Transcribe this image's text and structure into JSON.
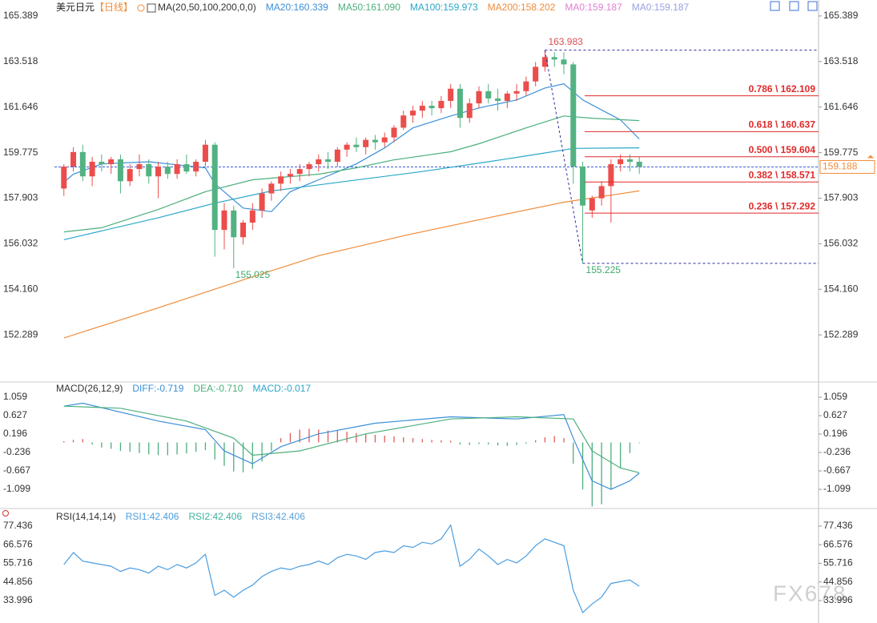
{
  "chart_data": [
    {
      "type": "candlestick",
      "title": "美元日元",
      "period": "【日线】",
      "indicator": "MA(20,50,100,200,0,0)",
      "up_color": "#eb4d4b",
      "down_color": "#52b282",
      "xlim": [
        -1,
        80
      ],
      "ylim": [
        150.42,
        165.88
      ],
      "yticks": [
        165.389,
        163.518,
        161.646,
        159.775,
        157.903,
        156.032,
        {
          "value": 154.16,
          "label": "154.160"
        },
        152.289
      ],
      "ohlc": [
        [
          158.3,
          159.3,
          158.0,
          159.2
        ],
        [
          159.2,
          160.0,
          159.0,
          159.8
        ],
        [
          159.8,
          160.1,
          158.6,
          158.8
        ],
        [
          158.8,
          159.6,
          158.4,
          159.4
        ],
        [
          159.4,
          159.7,
          159.0,
          159.3
        ],
        [
          159.3,
          159.6,
          158.9,
          159.5
        ],
        [
          159.5,
          159.7,
          158.1,
          158.6
        ],
        [
          158.6,
          159.3,
          158.4,
          159.1
        ],
        [
          159.1,
          159.7,
          158.8,
          159.3
        ],
        [
          159.3,
          159.5,
          158.5,
          158.8
        ],
        [
          158.8,
          159.4,
          157.9,
          159.2
        ],
        [
          159.2,
          159.4,
          158.7,
          158.9
        ],
        [
          158.9,
          159.5,
          158.7,
          159.3
        ],
        [
          159.3,
          159.7,
          158.9,
          159.0
        ],
        [
          159.0,
          159.5,
          158.8,
          159.4
        ],
        [
          159.4,
          160.3,
          159.2,
          160.1
        ],
        [
          160.1,
          160.2,
          155.5,
          156.6
        ],
        [
          156.6,
          157.7,
          155.8,
          157.4
        ],
        [
          157.4,
          157.6,
          155.025,
          156.3
        ],
        [
          156.3,
          157.0,
          156.0,
          156.9
        ],
        [
          156.9,
          157.7,
          156.6,
          157.4
        ],
        [
          157.4,
          158.3,
          157.1,
          158.1
        ],
        [
          158.1,
          158.6,
          157.8,
          158.5
        ],
        [
          158.5,
          159.0,
          158.2,
          158.8
        ],
        [
          158.8,
          159.1,
          158.5,
          158.9
        ],
        [
          158.9,
          159.3,
          158.6,
          159.1
        ],
        [
          159.1,
          159.4,
          158.8,
          159.3
        ],
        [
          159.3,
          159.7,
          159.0,
          159.5
        ],
        [
          159.5,
          159.8,
          159.1,
          159.4
        ],
        [
          159.4,
          160.0,
          159.2,
          159.9
        ],
        [
          159.9,
          160.2,
          159.6,
          160.1
        ],
        [
          160.1,
          160.4,
          159.8,
          160.0
        ],
        [
          160.0,
          160.4,
          159.7,
          160.3
        ],
        [
          160.3,
          160.5,
          159.9,
          160.2
        ],
        [
          160.2,
          160.6,
          160.0,
          160.4
        ],
        [
          160.4,
          160.9,
          160.2,
          160.8
        ],
        [
          160.8,
          161.5,
          160.7,
          161.3
        ],
        [
          161.3,
          161.7,
          161.0,
          161.5
        ],
        [
          161.5,
          161.9,
          161.2,
          161.7
        ],
        [
          161.7,
          161.9,
          161.3,
          161.6
        ],
        [
          161.6,
          162.1,
          161.4,
          161.9
        ],
        [
          161.9,
          162.6,
          161.6,
          162.4
        ],
        [
          162.4,
          162.6,
          160.8,
          161.2
        ],
        [
          161.2,
          162.0,
          161.0,
          161.8
        ],
        [
          161.8,
          162.5,
          161.6,
          162.3
        ],
        [
          162.3,
          162.6,
          161.8,
          162.0
        ],
        [
          162.0,
          162.4,
          161.5,
          161.9
        ],
        [
          161.9,
          162.3,
          161.6,
          162.2
        ],
        [
          162.2,
          162.6,
          161.9,
          162.3
        ],
        [
          162.3,
          162.9,
          162.1,
          162.7
        ],
        [
          162.7,
          163.5,
          162.5,
          163.3
        ],
        [
          163.3,
          163.983,
          163.1,
          163.7
        ],
        [
          163.7,
          163.9,
          163.3,
          163.6
        ],
        [
          163.6,
          163.9,
          163.0,
          163.4
        ],
        [
          163.4,
          163.5,
          158.5,
          159.2
        ],
        [
          159.2,
          159.4,
          155.225,
          157.6
        ],
        [
          157.4,
          158.0,
          157.1,
          157.9
        ],
        [
          157.9,
          158.6,
          157.6,
          158.4
        ],
        [
          158.4,
          159.5,
          156.9,
          159.3
        ],
        [
          159.3,
          159.7,
          159.0,
          159.5
        ],
        [
          159.5,
          159.7,
          159.0,
          159.4
        ],
        [
          159.4,
          159.6,
          158.9,
          159.188
        ]
      ],
      "series": [
        {
          "name": "MA20:160.339",
          "color": "#3b8fd8",
          "x": [
            0,
            1,
            4,
            9,
            15,
            16,
            19,
            22,
            24,
            27,
            31,
            34,
            37,
            41,
            44,
            48,
            51,
            53,
            55,
            59,
            61
          ],
          "values": [
            158.56,
            158.89,
            159.31,
            159.4,
            159.15,
            158.5,
            157.5,
            157.35,
            158.17,
            158.66,
            159.31,
            159.97,
            160.79,
            161.28,
            161.61,
            161.94,
            162.43,
            162.6,
            161.94,
            161.12,
            160.339
          ]
        },
        {
          "name": "MA50:161.090",
          "color": "#4caf7d",
          "x": [
            0,
            4,
            10,
            15,
            20,
            27,
            31,
            35,
            41,
            44,
            49,
            53,
            56,
            61
          ],
          "values": [
            156.52,
            156.69,
            157.44,
            158.17,
            158.66,
            158.89,
            159.15,
            159.48,
            159.81,
            160.14,
            160.79,
            161.28,
            161.19,
            161.09
          ]
        },
        {
          "name": "MA100:159.973",
          "color": "#2aa7c9",
          "x": [
            0,
            10,
            16,
            22,
            30,
            38,
            45,
            50,
            54,
            61
          ],
          "values": [
            156.2,
            157.1,
            157.7,
            158.2,
            158.6,
            159.0,
            159.4,
            159.7,
            159.95,
            159.973
          ]
        },
        {
          "name": "MA200:158.202",
          "color": "#f08c3a",
          "x": [
            0,
            10,
            19,
            27,
            36,
            44,
            53,
            61
          ],
          "values": [
            152.16,
            153.4,
            154.55,
            155.54,
            156.36,
            157.02,
            157.74,
            158.202
          ]
        }
      ],
      "extra_legend": [
        {
          "name": "MA0:159.187",
          "color": "#e07fd2"
        },
        {
          "name": "MA0:159.187",
          "color": "#9a9fe0"
        }
      ],
      "fib": [
        {
          "label": "0.786 \\ 162.109",
          "value": 162.109
        },
        {
          "label": "0.618 \\ 160.637",
          "value": 160.637
        },
        {
          "label": "0.500 \\ 159.604",
          "value": 159.604
        },
        {
          "label": "0.382 \\ 158.571",
          "value": 158.571
        },
        {
          "label": "0.236 \\ 157.292",
          "value": 157.292
        }
      ],
      "fib_color": "#e02a2a",
      "last_price": 159.188,
      "last_price_color": "#f08c3a",
      "last_line_color": "#3b5fd9",
      "trend_color": "#2a2aa0"
    },
    {
      "type": "macd",
      "title": "MACD(26,12,9)",
      "xlim": [
        -1,
        80
      ],
      "ylim": [
        -1.52,
        1.36
      ],
      "yticks": [
        1.059,
        0.627,
        0.196,
        -0.236,
        -0.667,
        -1.099
      ],
      "histogram": {
        "name": "MACD:-0.017",
        "color": "#2aa7c9",
        "up_color": "#e05a5a",
        "down_color": "#4caf7d",
        "values": [
          0.03,
          0.06,
          0.08,
          -0.05,
          -0.12,
          -0.15,
          -0.2,
          -0.22,
          -0.25,
          -0.28,
          -0.3,
          -0.3,
          -0.28,
          -0.26,
          -0.22,
          -0.18,
          -0.4,
          -0.55,
          -0.68,
          -0.7,
          -0.62,
          -0.45,
          -0.2,
          0.1,
          0.22,
          0.3,
          0.32,
          0.3,
          0.28,
          0.27,
          0.25,
          0.22,
          0.2,
          0.18,
          0.16,
          0.14,
          0.12,
          0.1,
          0.08,
          0.06,
          0.05,
          0.04,
          -0.05,
          -0.06,
          -0.04,
          -0.05,
          -0.07,
          -0.08,
          -0.06,
          -0.03,
          0.05,
          0.12,
          0.15,
          0.1,
          -0.5,
          -1.1,
          -1.5,
          -1.45,
          -1.1,
          -0.6,
          -0.25,
          -0.017
        ]
      },
      "series": [
        {
          "name": "DIFF:-0.719",
          "color": "#3b8fd8",
          "x": [
            0,
            2,
            10,
            15,
            17,
            20,
            23,
            27,
            33,
            41,
            48,
            53,
            54,
            56,
            58,
            60,
            61
          ],
          "values": [
            0.85,
            0.92,
            0.5,
            0.3,
            -0.2,
            -0.5,
            -0.1,
            0.2,
            0.45,
            0.6,
            0.55,
            0.65,
            0.1,
            -0.9,
            -1.1,
            -0.9,
            -0.719
          ]
        },
        {
          "name": "DEA:-0.710",
          "color": "#4caf7d",
          "x": [
            0,
            6,
            13,
            18,
            20,
            25,
            32,
            41,
            48,
            54,
            56,
            59,
            61
          ],
          "values": [
            0.85,
            0.8,
            0.5,
            0.1,
            -0.3,
            -0.2,
            0.2,
            0.55,
            0.6,
            0.55,
            -0.2,
            -0.6,
            -0.71
          ]
        }
      ]
    },
    {
      "type": "line",
      "title": "RSI(14,14,14)",
      "xlim": [
        -1,
        80
      ],
      "ylim": [
        20.9,
        86.3
      ],
      "yticks": [
        77.436,
        66.576,
        55.716,
        44.856,
        33.996
      ],
      "series": [
        {
          "name": "RSI1:42.406",
          "color": "#4a9de0",
          "values": [
            55,
            62,
            57,
            56,
            55,
            54,
            51,
            53,
            52,
            50,
            54,
            52,
            55,
            53,
            56,
            61,
            37,
            40,
            36,
            40,
            43,
            48,
            51,
            53,
            52,
            54,
            55,
            57,
            55,
            59,
            61,
            60,
            58,
            62,
            63,
            62,
            66,
            65,
            68,
            67,
            70,
            78,
            54,
            58,
            64,
            60,
            55,
            58,
            56,
            60,
            66,
            70,
            68,
            66,
            40,
            27,
            32,
            36,
            44,
            45,
            46,
            42.406
          ]
        }
      ],
      "extra_legend": [
        {
          "name": "RSI2:42.406",
          "color": "#3fb0a0"
        },
        {
          "name": "RSI3:42.406",
          "color": "#5aa0d8"
        }
      ]
    }
  ],
  "watermark": "FX678"
}
